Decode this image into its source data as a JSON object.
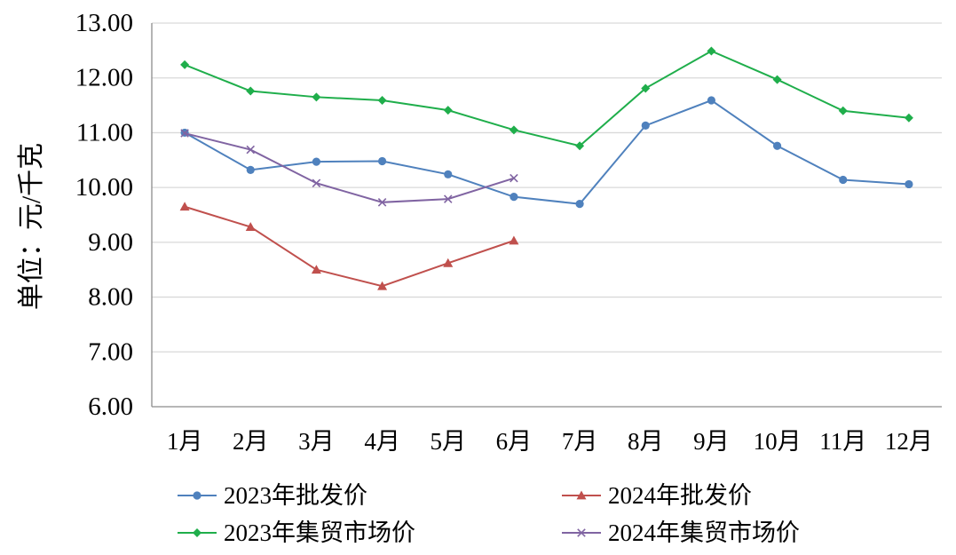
{
  "chart_data": {
    "type": "line",
    "categories": [
      "1月",
      "2月",
      "3月",
      "4月",
      "5月",
      "6月",
      "7月",
      "8月",
      "9月",
      "10月",
      "11月",
      "12月"
    ],
    "ylabel": "单位：元/千克",
    "ylim": [
      6,
      13
    ],
    "yticks": [
      "6.00",
      "7.00",
      "8.00",
      "9.00",
      "10.00",
      "11.00",
      "12.00",
      "13.00"
    ],
    "grid": true,
    "legend_position": "bottom",
    "series": [
      {
        "name": "2023年批发价",
        "color": "#4f81bd",
        "marker": "circle",
        "values": [
          11.0,
          10.32,
          10.47,
          10.48,
          10.24,
          9.83,
          9.7,
          11.13,
          11.59,
          10.76,
          10.14,
          10.06
        ]
      },
      {
        "name": "2024年批发价",
        "color": "#c0504d",
        "marker": "triangle",
        "values": [
          9.65,
          9.28,
          8.5,
          8.2,
          8.62,
          9.03,
          null,
          null,
          null,
          null,
          null,
          null
        ]
      },
      {
        "name": "2023年集贸市场价",
        "color": "#1fae4b",
        "marker": "diamond",
        "values": [
          12.24,
          11.76,
          11.65,
          11.59,
          11.41,
          11.05,
          10.76,
          11.81,
          12.49,
          11.97,
          11.4,
          11.27
        ]
      },
      {
        "name": "2024年集贸市场价",
        "color": "#8064a2",
        "marker": "x",
        "values": [
          10.99,
          10.69,
          10.08,
          9.73,
          9.79,
          10.17,
          null,
          null,
          null,
          null,
          null,
          null
        ]
      }
    ]
  }
}
